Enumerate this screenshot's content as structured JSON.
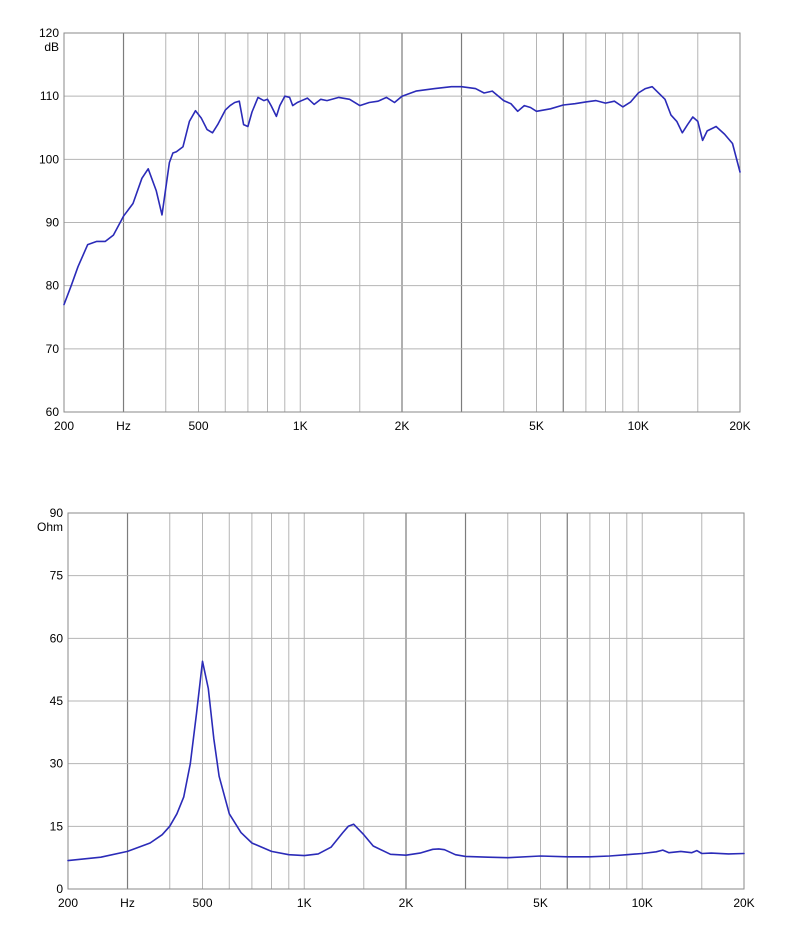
{
  "colors": {
    "curve": "#2b2bb8",
    "grid": "#b5b5b5",
    "grid_major": "#7c7c7c"
  },
  "chart_data": [
    {
      "type": "line",
      "title": "",
      "xlabel": "Hz",
      "ylabel": "dB",
      "x_scale": "log",
      "xlim": [
        200,
        20000
      ],
      "ylim": [
        60,
        120
      ],
      "grid": true,
      "x_ticks": [
        {
          "value": 200,
          "label": "200"
        },
        {
          "value": 300,
          "label": "Hz"
        },
        {
          "value": 500,
          "label": "500"
        },
        {
          "value": 1000,
          "label": "1K"
        },
        {
          "value": 2000,
          "label": "2K"
        },
        {
          "value": 5000,
          "label": "5K"
        },
        {
          "value": 10000,
          "label": "10K"
        },
        {
          "value": 20000,
          "label": "20K"
        }
      ],
      "y_ticks": [
        {
          "value": 120,
          "label": "120"
        },
        {
          "value": 110,
          "label": "110"
        },
        {
          "value": 100,
          "label": "100"
        },
        {
          "value": 90,
          "label": "90"
        },
        {
          "value": 80,
          "label": "80"
        },
        {
          "value": 70,
          "label": "70"
        },
        {
          "value": 60,
          "label": "60"
        }
      ],
      "series": [
        {
          "x": [
            200,
            210,
            220,
            235,
            250,
            265,
            280,
            300,
            320,
            340,
            355,
            375,
            390,
            410,
            420,
            430,
            450,
            470,
            490,
            510,
            530,
            550,
            570,
            600,
            620,
            640,
            660,
            680,
            700,
            720,
            750,
            780,
            800,
            820,
            850,
            870,
            900,
            930,
            950,
            980,
            1000,
            1050,
            1100,
            1150,
            1200,
            1300,
            1400,
            1500,
            1600,
            1700,
            1800,
            1900,
            2000,
            2200,
            2500,
            2800,
            3000,
            3300,
            3500,
            3700,
            4000,
            4200,
            4400,
            4600,
            4800,
            5000,
            5500,
            6000,
            6500,
            7000,
            7500,
            8000,
            8500,
            9000,
            9500,
            10000,
            10500,
            11000,
            12000,
            12500,
            13000,
            13500,
            14000,
            14500,
            15000,
            15500,
            16000,
            17000,
            18000,
            19000,
            20000
          ],
          "y": [
            77,
            80,
            83,
            86.5,
            87,
            87,
            88,
            91,
            93,
            97,
            98.5,
            95,
            91.2,
            99.5,
            101,
            101.2,
            102,
            106,
            107.7,
            106.5,
            104.7,
            104.2,
            105.5,
            107.8,
            108.5,
            109,
            109.2,
            105.5,
            105.2,
            107.5,
            109.8,
            109.3,
            109.5,
            108.5,
            106.8,
            108.5,
            110,
            109.8,
            108.5,
            109,
            109.2,
            109.7,
            108.7,
            109.5,
            109.3,
            109.8,
            109.5,
            108.5,
            109,
            109.2,
            109.8,
            109,
            110,
            110.8,
            111.2,
            111.5,
            111.5,
            111.2,
            110.5,
            110.8,
            109.3,
            108.8,
            107.6,
            108.5,
            108.2,
            107.6,
            108,
            108.6,
            108.8,
            109.1,
            109.3,
            108.9,
            109.2,
            108.3,
            109.1,
            110.5,
            111.2,
            111.5,
            109.5,
            107,
            106,
            104.2,
            105.5,
            106.7,
            106,
            103,
            104.5,
            105.2,
            104,
            102.5,
            98
          ]
        }
      ]
    },
    {
      "type": "line",
      "title": "",
      "xlabel": "Hz",
      "ylabel": "Ohm",
      "x_scale": "log",
      "xlim": [
        200,
        20000
      ],
      "ylim": [
        0,
        90
      ],
      "grid": true,
      "x_ticks": [
        {
          "value": 200,
          "label": "200"
        },
        {
          "value": 300,
          "label": "Hz"
        },
        {
          "value": 500,
          "label": "500"
        },
        {
          "value": 1000,
          "label": "1K"
        },
        {
          "value": 2000,
          "label": "2K"
        },
        {
          "value": 5000,
          "label": "5K"
        },
        {
          "value": 10000,
          "label": "10K"
        },
        {
          "value": 20000,
          "label": "20K"
        }
      ],
      "y_ticks": [
        {
          "value": 90,
          "label": "90"
        },
        {
          "value": 75,
          "label": "75"
        },
        {
          "value": 60,
          "label": "60"
        },
        {
          "value": 45,
          "label": "45"
        },
        {
          "value": 30,
          "label": "30"
        },
        {
          "value": 15,
          "label": "15"
        },
        {
          "value": 0,
          "label": "0"
        }
      ],
      "series": [
        {
          "x": [
            200,
            250,
            300,
            350,
            380,
            400,
            420,
            440,
            460,
            480,
            500,
            520,
            540,
            560,
            600,
            650,
            700,
            800,
            900,
            1000,
            1100,
            1200,
            1300,
            1350,
            1400,
            1500,
            1600,
            1800,
            2000,
            2200,
            2400,
            2500,
            2600,
            2800,
            3000,
            3500,
            4000,
            5000,
            6000,
            7000,
            8000,
            9000,
            10000,
            11000,
            11500,
            12000,
            13000,
            14000,
            14500,
            15000,
            16000,
            18000,
            20000
          ],
          "y": [
            6.8,
            7.6,
            9,
            11,
            13,
            15,
            18,
            22,
            30,
            42,
            54.5,
            48,
            36,
            27,
            18,
            13.5,
            11,
            9,
            8.2,
            8,
            8.4,
            10,
            13.5,
            15,
            15.5,
            13,
            10.3,
            8.3,
            8.1,
            8.6,
            9.5,
            9.6,
            9.4,
            8.2,
            7.8,
            7.6,
            7.5,
            7.9,
            7.7,
            7.7,
            7.9,
            8.2,
            8.5,
            8.9,
            9.3,
            8.7,
            9,
            8.7,
            9.2,
            8.5,
            8.6,
            8.4,
            8.5
          ]
        }
      ]
    }
  ]
}
